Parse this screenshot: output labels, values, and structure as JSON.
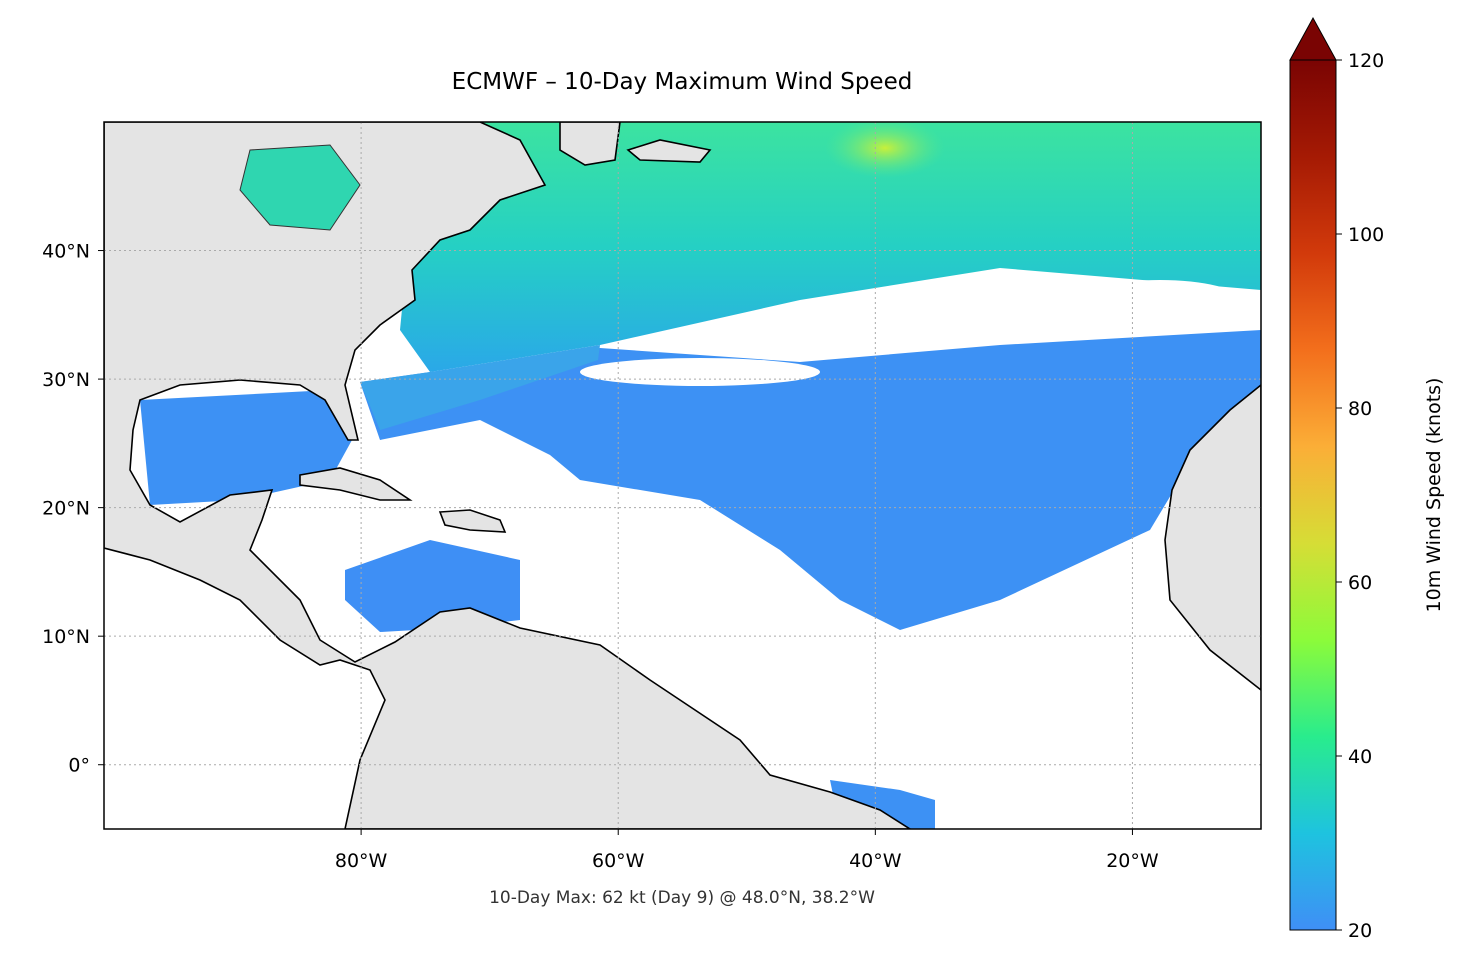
{
  "chart_data": {
    "type": "map",
    "title": "ECMWF – 10-Day Maximum Wind Speed",
    "annotation": "10-Day Max: 62 kt (Day 9) @ 48.0°N, 38.2°W",
    "xlim": [
      -100,
      -10
    ],
    "ylim": [
      -5,
      50
    ],
    "xticks": [
      {
        "value": -80,
        "label": "80°W"
      },
      {
        "value": -60,
        "label": "60°W"
      },
      {
        "value": -40,
        "label": "40°W"
      },
      {
        "value": -20,
        "label": "20°W"
      }
    ],
    "yticks": [
      {
        "value": 0,
        "label": "0°"
      },
      {
        "value": 10,
        "label": "10°N"
      },
      {
        "value": 20,
        "label": "20°N"
      },
      {
        "value": 30,
        "label": "30°N"
      },
      {
        "value": 40,
        "label": "40°N"
      }
    ],
    "grid": true,
    "colorbar": {
      "label": "10m Wind Speed (knots)",
      "lim": [
        20,
        120
      ],
      "ticks": [
        20,
        40,
        60,
        80,
        100,
        120
      ],
      "colors": [
        "#3f8ff6",
        "#1ec3df",
        "#29ec8d",
        "#8cfb3a",
        "#d6dd36",
        "#fbae37",
        "#f36f1c",
        "#d23a0b",
        "#a51a04",
        "#7a0403"
      ]
    }
  }
}
